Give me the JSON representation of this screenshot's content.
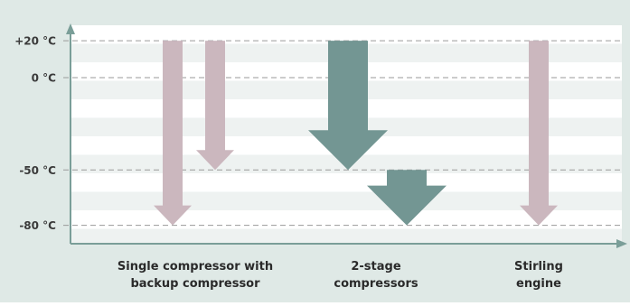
{
  "diagram": {
    "y_axis_ticks": [
      {
        "label": "+20 °C",
        "value": 20
      },
      {
        "label": "0 °C",
        "value": 0
      },
      {
        "label": "-50 °C",
        "value": -50
      },
      {
        "label": "-80 °C",
        "value": -80
      }
    ],
    "categories": [
      {
        "line1": "Single compressor with",
        "line2": "backup compressor"
      },
      {
        "line1": "2-stage",
        "line2": "compressors"
      },
      {
        "line1": "Stirling",
        "line2": "engine"
      }
    ],
    "arrows": [
      {
        "category": 0,
        "from": 20,
        "to": -80,
        "style": "thin"
      },
      {
        "category": 0,
        "from": 20,
        "to": -50,
        "style": "thin"
      },
      {
        "category": 1,
        "from": 20,
        "to": -50,
        "style": "wide"
      },
      {
        "category": 1,
        "from": -50,
        "to": -80,
        "style": "wide"
      },
      {
        "category": 2,
        "from": 20,
        "to": -80,
        "style": "thin"
      }
    ],
    "colors": {
      "background": "#dfe9e6",
      "plot_stripe_light": "#ffffff",
      "plot_stripe_dark": "#eef2f1",
      "axis": "#7a9e98",
      "gridline": "#9a9a9a",
      "thin_arrow": "#cbb7be",
      "wide_arrow": "#739693"
    }
  }
}
